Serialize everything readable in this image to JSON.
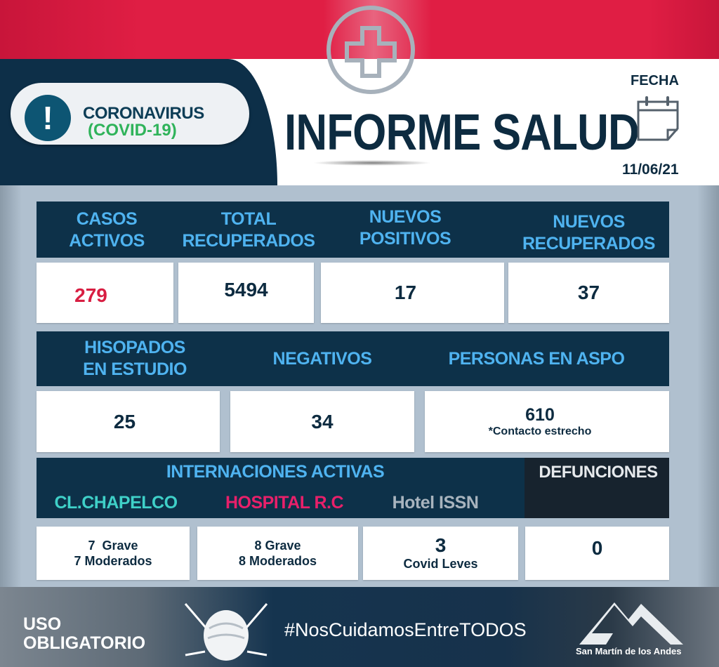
{
  "header": {
    "badge_line1": "CORONAVIRUS",
    "badge_line2": "(COVID-19)",
    "title": "INFORME SALUD",
    "date_label": "FECHA",
    "date": "11/06/21"
  },
  "row1": {
    "headers": [
      [
        "CASOS",
        "ACTIVOS"
      ],
      [
        "TOTAL",
        "RECUPERADOS"
      ],
      [
        "NUEVOS",
        "POSITIVOS"
      ],
      [
        "NUEVOS",
        "RECUPERADOS"
      ]
    ],
    "values": [
      "279",
      "5494",
      "17",
      "37"
    ]
  },
  "row2": {
    "headers": [
      [
        "HISOPADOS",
        "EN ESTUDIO"
      ],
      [
        "NEGATIVOS"
      ],
      [
        "PERSONAS EN ASPO"
      ]
    ],
    "values": [
      "25",
      "34",
      "610"
    ],
    "aspo_note": "*Contacto estrecho"
  },
  "row3": {
    "title": "INTERNACIONES ACTIVAS",
    "deaths_label": "DEFUNCIONES",
    "places": [
      "CL.CHAPELCO",
      "HOSPITAL R.C",
      "Hotel ISSN"
    ],
    "chapelco": [
      "7  Grave",
      "7 Moderados"
    ],
    "hospital": [
      "8 Grave",
      "8 Moderados"
    ],
    "hotel": [
      "3",
      "Covid Leves"
    ],
    "deaths": "0"
  },
  "footer": {
    "mask_line1": "USO",
    "mask_line2": "OBLIGATORIO",
    "hashtag": "#NosCuidamosEntreTODOS",
    "logo_text": "San Martín de los Andes"
  },
  "colors": {
    "red": "#e01e44",
    "navy": "#0d3149",
    "header_text": "#4fb3f0",
    "active_cases": "#d81e42",
    "chapelco": "#3fd0c8",
    "hospital": "#e8206a",
    "hotel": "#a8b4be"
  }
}
